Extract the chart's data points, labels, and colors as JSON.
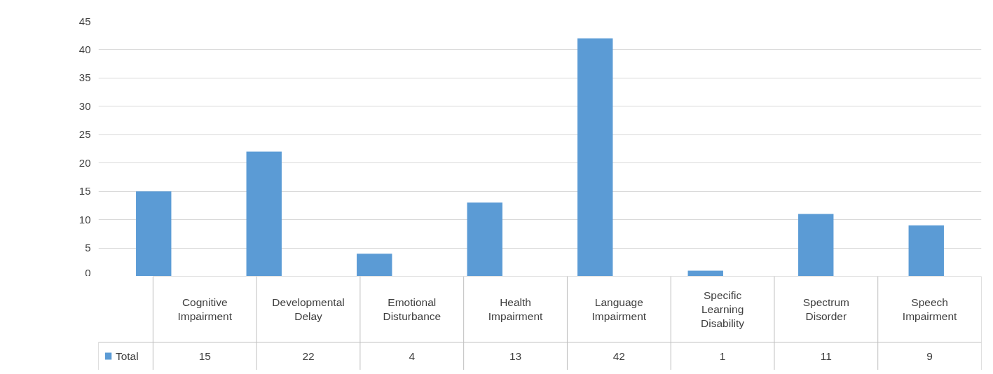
{
  "chart_data": {
    "type": "bar",
    "categories": [
      "Cognitive Impairment",
      "Developmental Delay",
      "Emotional Disturbance",
      "Health Impairment",
      "Language Impairment",
      "Specific Learning Disability",
      "Spectrum Disorder",
      "Speech Impairment"
    ],
    "series": [
      {
        "name": "Total",
        "color": "#5b9bd5",
        "values": [
          15,
          22,
          4,
          13,
          42,
          1,
          11,
          9
        ]
      }
    ],
    "ylim": [
      0,
      45
    ],
    "yticks": [
      0,
      5,
      10,
      15,
      20,
      25,
      30,
      35,
      40,
      45
    ],
    "grid": "y",
    "legend": "bottom left",
    "data_labels": true
  }
}
